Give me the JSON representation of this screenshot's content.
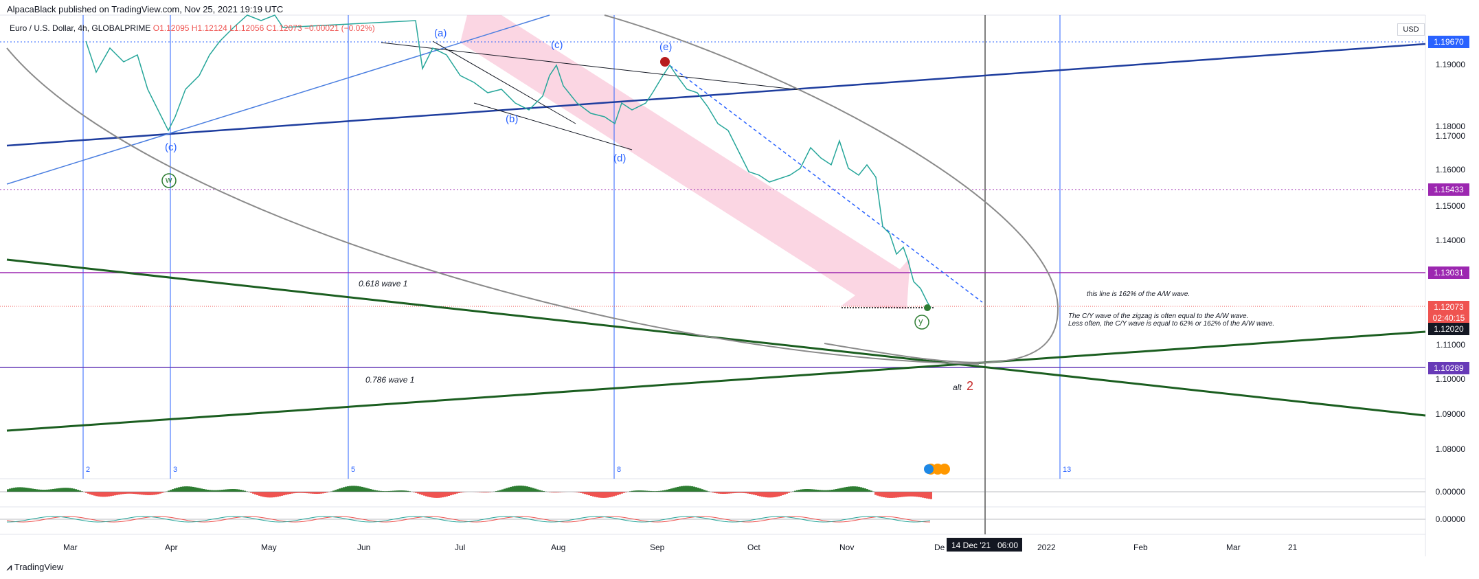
{
  "header": {
    "publisher": "AlpacaBlack published on TradingView.com, Nov 25, 2021 19:19 UTC",
    "symbol": "Euro / U.S. Dollar, 4h, GLOBALPRIME",
    "ohlc": "O1.12095 H1.12124 L1.12056 C1.12073 −0.00021 (−0.02%)",
    "currency_button": "USD"
  },
  "price_axis": {
    "ticks": [
      "1.19000",
      "1.18000",
      "1.17000",
      "1.16000",
      "1.15000",
      "1.14000",
      "1.11000",
      "1.10000",
      "1.09000",
      "1.08000"
    ],
    "tags": {
      "top": "1.19670",
      "mid": "1.15433",
      "fib": "1.13031",
      "last": "1.12073",
      "countdown": "02:40:15",
      "black": "1.12020",
      "low": "1.10289"
    }
  },
  "time_axis": {
    "months": [
      "Mar",
      "Apr",
      "May",
      "Jun",
      "Jul",
      "Aug",
      "Sep",
      "Oct",
      "Nov",
      "De",
      "2022",
      "Feb",
      "Mar",
      "21"
    ],
    "crosshair_date": "14 Dec '21",
    "crosshair_time": "06:00"
  },
  "waves": {
    "a": "(a)",
    "b": "(b)",
    "c": "(c)",
    "d": "(d)",
    "e": "(e)",
    "c_left": "(c)",
    "w": "w",
    "y": "y"
  },
  "cycle_numbers": [
    "2",
    "3",
    "5",
    "8",
    "13"
  ],
  "annotations": {
    "fib618": "0.618 wave 1",
    "fib786": "0.786 wave 1",
    "alt_label": "alt",
    "alt_num": "2",
    "note1": "this line is 162% of the A/W wave.",
    "note2": "The C/Y wave of the zigzag is often equal to the A/W wave.",
    "note3": "Less often, the C/Y wave is equal to 62% or 162% of the A/W wave."
  },
  "oscillators": {
    "osc1_value": "0.00000",
    "osc2_value": "0.00000"
  },
  "footer": {
    "brand": "TradingView"
  },
  "colors": {
    "up": "#26a69a",
    "down": "#ef5350",
    "blue_line": "#1e3d9e",
    "green_line": "#1b5e20",
    "fib_purple": "#9c27b0",
    "violet": "#673ab7"
  }
}
